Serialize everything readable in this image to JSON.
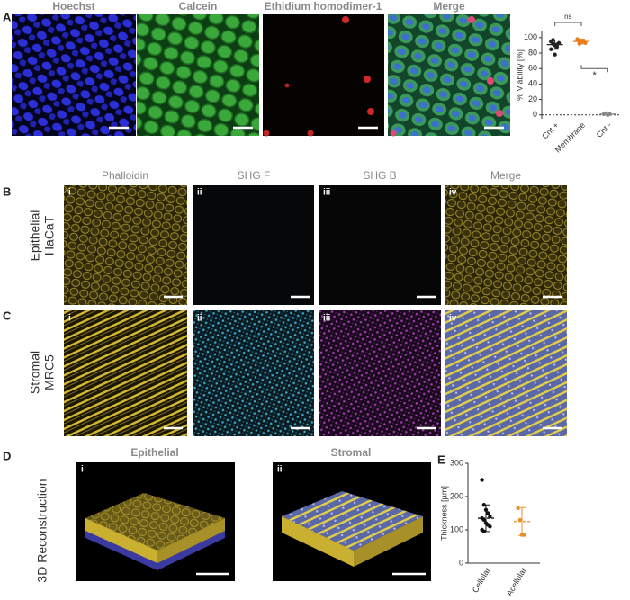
{
  "figure": {
    "row_a": {
      "letter": "A",
      "columns": [
        "Hoechst",
        "Calcein",
        "Ethidium homodimer-1",
        "Merge"
      ]
    },
    "row_b": {
      "letter": "B",
      "row_label": [
        "Epithelial",
        "HaCaT"
      ],
      "columns": [
        "Phalloidin",
        "SHG F",
        "SHG B",
        "Merge"
      ],
      "roman": [
        "i",
        "ii",
        "iii",
        "iv"
      ]
    },
    "row_c": {
      "letter": "C",
      "row_label": [
        "Stromal",
        "MRC5"
      ],
      "roman": [
        "i",
        "ii",
        "iii",
        "iv"
      ]
    },
    "row_d": {
      "letter": "D",
      "row_label": "3D Reconstruction",
      "columns": [
        "Epithelial",
        "Stromal"
      ],
      "roman": [
        "i",
        "ii"
      ]
    },
    "row_e": {
      "letter": "E"
    }
  },
  "chart_data": [
    {
      "type": "dot",
      "y_label": "% Viability [%]",
      "categories": [
        "Cnt +",
        "Membrane",
        "Cnt -"
      ],
      "colors": [
        "#222222",
        "#e87d1e",
        "#888888"
      ],
      "values": [
        91,
        95,
        1
      ],
      "errors": [
        6,
        3,
        1
      ],
      "points": [
        [
          95,
          92,
          90,
          88,
          93,
          85,
          97,
          78,
          91
        ],
        [
          97,
          95,
          94,
          96,
          93,
          98,
          92
        ],
        [
          1,
          2,
          0,
          1
        ]
      ],
      "ylim": [
        -5,
        108
      ],
      "yticks": [
        0,
        20,
        40,
        60,
        80,
        100
      ],
      "mean_dashed": false,
      "annotations": [
        "ns",
        "*"
      ]
    },
    {
      "type": "dot",
      "y_label": "Thickness [µm]",
      "categories": [
        "Cellular",
        "Acellular"
      ],
      "colors": [
        "#111111",
        "#e8902a"
      ],
      "values": [
        135,
        125
      ],
      "errors": [
        40,
        42
      ],
      "points": [
        [
          250,
          175,
          160,
          150,
          140,
          135,
          130,
          120,
          115,
          110,
          100,
          95
        ],
        [
          165,
          130,
          85,
          85
        ]
      ],
      "ylim": [
        0,
        300
      ],
      "yticks": [
        0,
        100,
        200,
        300
      ],
      "mean_dashed": true
    }
  ]
}
